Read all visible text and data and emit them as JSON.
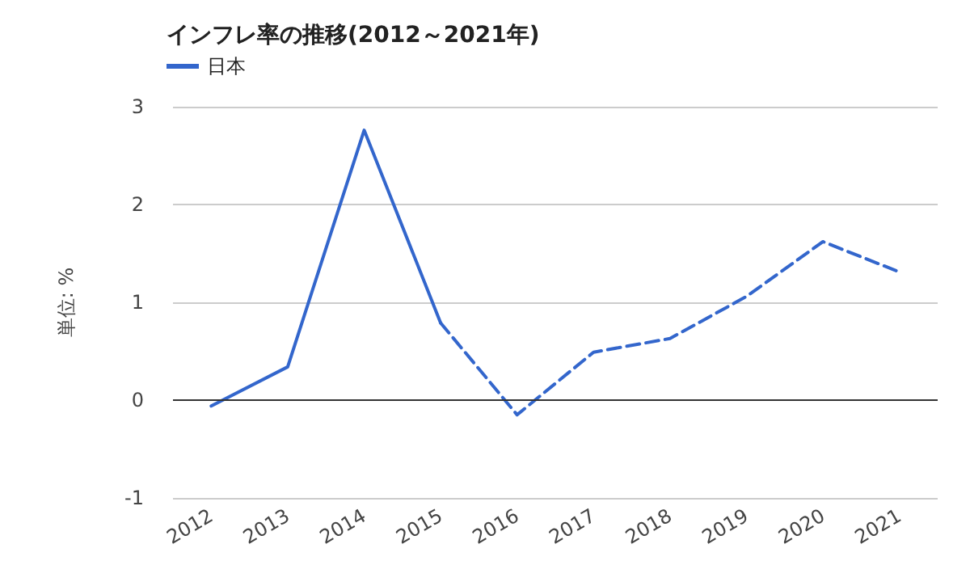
{
  "chart_data": {
    "type": "line",
    "title": "インフレ率の推移(2012～2021年)",
    "ylabel": "単位: %",
    "categories": [
      "2012",
      "2013",
      "2014",
      "2015",
      "2016",
      "2017",
      "2018",
      "2019",
      "2020",
      "2021"
    ],
    "series": [
      {
        "name": "日本",
        "color": "#3366cc",
        "line_style": "solid",
        "values": [
          -0.06,
          0.34,
          2.76,
          0.79,
          null,
          null,
          null,
          null,
          null,
          null
        ]
      },
      {
        "color": "#3366cc",
        "line_style": "dashed",
        "values": [
          null,
          null,
          null,
          0.79,
          -0.15,
          0.49,
          0.63,
          1.06,
          1.62,
          1.31
        ]
      }
    ],
    "ylim": [
      -1,
      3
    ],
    "yticks": [
      -1,
      0,
      1,
      2,
      3
    ],
    "grid": "y",
    "legend": "top left",
    "marker": "none",
    "ref_lines": [
      {
        "axis": "y",
        "value": 0,
        "color": "#333333"
      }
    ]
  }
}
